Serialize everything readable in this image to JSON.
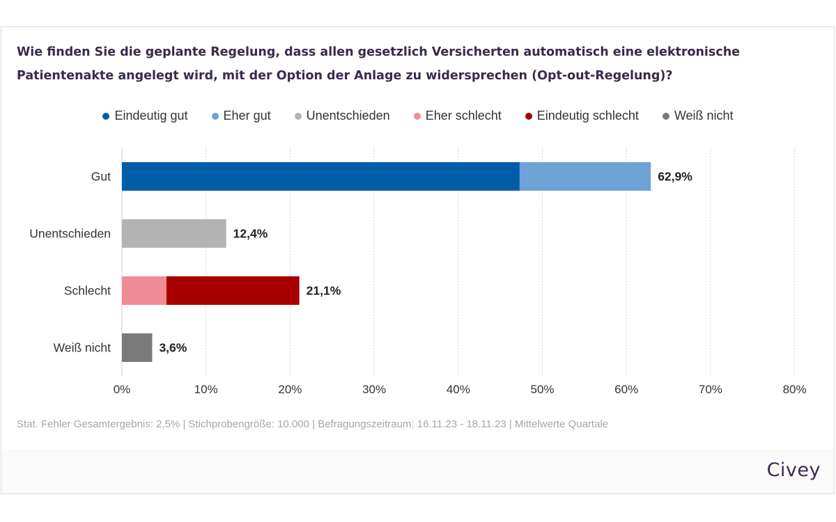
{
  "title": "Wie finden Sie die geplante Regelung, dass allen gesetzlich Versicherten automatisch eine elektronische Patientenakte angelegt wird, mit der Option der Anlage zu widersprechen (Opt-out-Regelung)?",
  "footnote": "Stat. Fehler Gesamtergebnis: 2,5% | Stichprobengröße: 10.000 | Befragungszeitraum: 16.11.23 - 18.11.23 | Mittelwerte Quartale",
  "brand": "Civey",
  "legend": [
    {
      "label": "Eindeutig gut",
      "color": "#005da8"
    },
    {
      "label": "Eher gut",
      "color": "#6fa3d8"
    },
    {
      "label": "Unentschieden",
      "color": "#b3b3b3"
    },
    {
      "label": "Eher schlecht",
      "color": "#f08c93"
    },
    {
      "label": "Eindeutig schlecht",
      "color": "#a80000"
    },
    {
      "label": "Weiß nicht",
      "color": "#7a7a7a"
    }
  ],
  "chart_data": {
    "type": "bar",
    "orientation": "horizontal",
    "stacked": true,
    "categories": [
      "Gut",
      "Unentschieden",
      "Schlecht",
      "Weiß nicht"
    ],
    "series": [
      {
        "name": "Eindeutig gut",
        "color": "#005da8",
        "values": [
          47.3,
          0,
          0,
          0
        ]
      },
      {
        "name": "Eher gut",
        "color": "#6fa3d8",
        "values": [
          15.6,
          0,
          0,
          0
        ]
      },
      {
        "name": "Unentschieden",
        "color": "#b3b3b3",
        "values": [
          0,
          12.4,
          0,
          0
        ]
      },
      {
        "name": "Eher schlecht",
        "color": "#f08c93",
        "values": [
          0,
          0,
          5.3,
          0
        ]
      },
      {
        "name": "Eindeutig schlecht",
        "color": "#a80000",
        "values": [
          0,
          0,
          15.8,
          0
        ]
      },
      {
        "name": "Weiß nicht",
        "color": "#7a7a7a",
        "values": [
          0,
          0,
          0,
          3.6
        ]
      }
    ],
    "totals": [
      "62,9%",
      "12,4%",
      "21,1%",
      "3,6%"
    ],
    "total_values": [
      62.9,
      12.4,
      21.1,
      3.6
    ],
    "xlim": [
      0,
      80
    ],
    "xticks": [
      "0%",
      "10%",
      "20%",
      "30%",
      "40%",
      "50%",
      "60%",
      "70%",
      "80%"
    ],
    "grid": true,
    "legend_position": "top"
  }
}
